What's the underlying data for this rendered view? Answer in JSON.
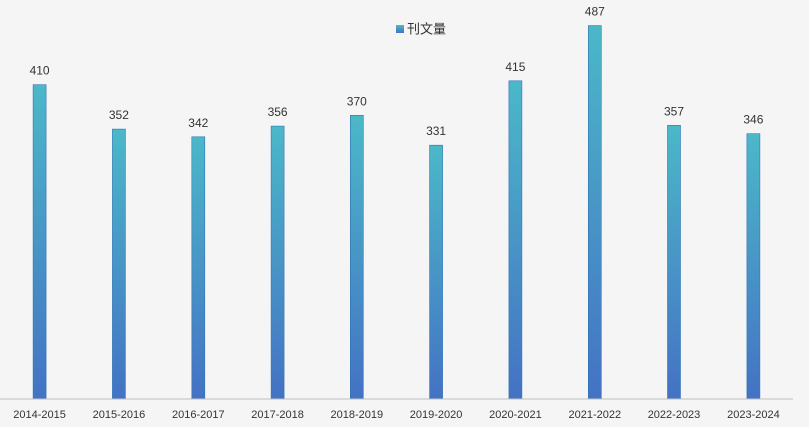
{
  "chart_data": {
    "type": "bar",
    "title": "",
    "xlabel": "",
    "ylabel": "",
    "legend": {
      "position": "top-center",
      "entries": [
        "刊文量"
      ]
    },
    "grid": false,
    "categories": [
      "2014-2015",
      "2015-2016",
      "2016-2017",
      "2017-2018",
      "2018-2019",
      "2019-2020",
      "2020-2021",
      "2021-2022",
      "2022-2023",
      "2023-2024"
    ],
    "series": [
      {
        "name": "刊文量",
        "values": [
          410,
          352,
          342,
          356,
          370,
          331,
          415,
          487,
          357,
          346
        ]
      }
    ],
    "ylim": [
      0,
      510
    ],
    "data_labels": true,
    "colors": {
      "bar_top": "#4bb8c8",
      "bar_bottom": "#4472c4",
      "bar_edge": "#2e75b6",
      "axis": "#bfbfbf",
      "background": "#f5f5f5"
    }
  }
}
